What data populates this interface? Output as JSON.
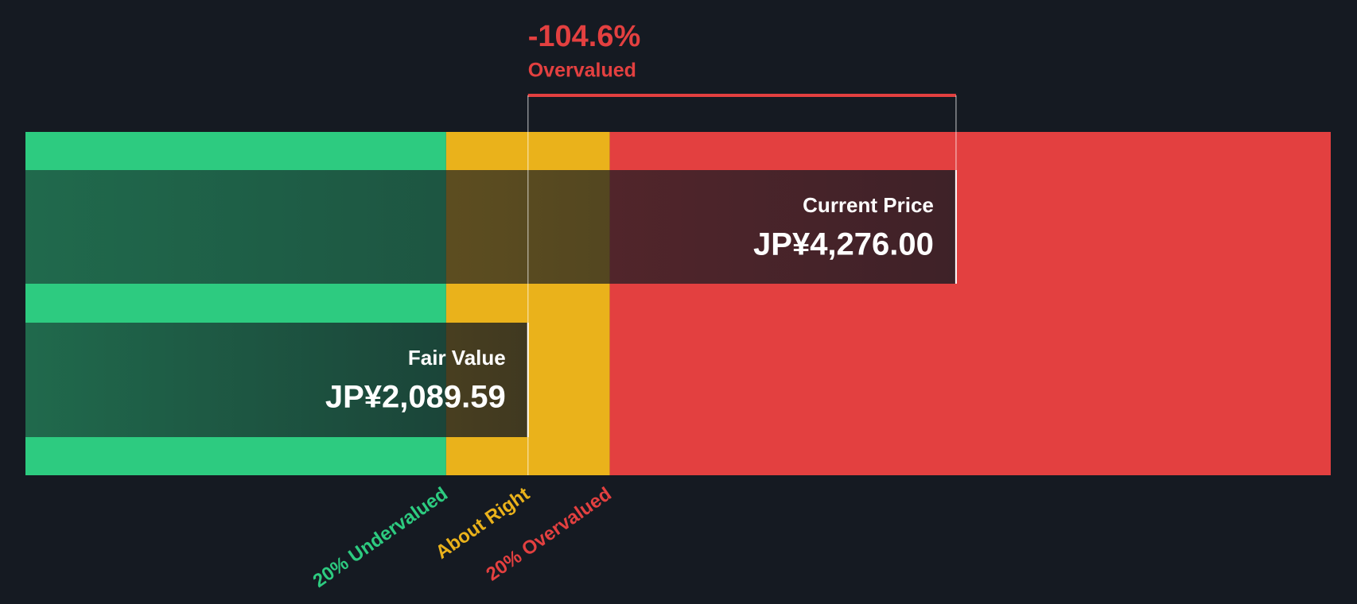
{
  "chart_data": {
    "type": "valuation",
    "categories": [
      "Current Price",
      "Fair Value"
    ],
    "values": [
      4276.0,
      2089.59
    ],
    "value_labels": [
      "JP¥4,276.00",
      "JP¥2,089.59"
    ],
    "xlim": [
      -477,
      6190
    ],
    "zones": [
      {
        "label": "20% Undervalued",
        "color": "#2dcb80",
        "range": [
          -477,
          1671.67
        ]
      },
      {
        "label": "About Right",
        "color": "#eab21b",
        "range": [
          1671.67,
          2507.51
        ]
      },
      {
        "label": "20% Overvalued",
        "color": "#e34040",
        "range": [
          2507.51,
          6190
        ]
      }
    ],
    "annotation": {
      "value": -104.6,
      "label": "-104.6%",
      "text": "Overvalued",
      "color": "#e34040"
    }
  }
}
